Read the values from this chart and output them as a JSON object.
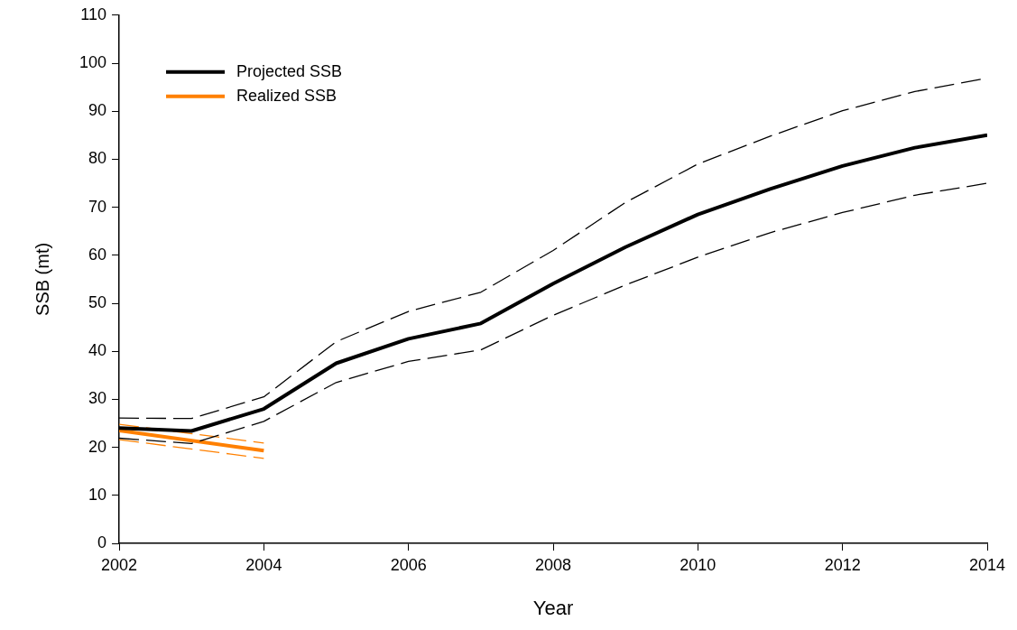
{
  "chart_data": {
    "type": "line",
    "xlabel": "Year",
    "ylabel": "SSB (mt)",
    "xlim": [
      2002,
      2014
    ],
    "xticks": [
      2002,
      2004,
      2006,
      2008,
      2010,
      2012,
      2014
    ],
    "ylim": [
      0,
      110
    ],
    "yticks": [
      0,
      10,
      20,
      30,
      40,
      50,
      60,
      70,
      80,
      90,
      100,
      110
    ],
    "grid": false,
    "legend": "top left",
    "marker": "none",
    "line_style": "solid",
    "series": [
      {
        "name": "Projected SSB",
        "color": "#000000",
        "x": [
          2002,
          2003,
          2004,
          2005,
          2006,
          2007,
          2008,
          2009,
          2010,
          2011,
          2012,
          2013,
          2014
        ],
        "values": [
          24.0,
          23.4,
          28.0,
          37.5,
          42.6,
          45.8,
          54.1,
          61.7,
          68.5,
          73.8,
          78.6,
          82.4,
          85.0
        ]
      },
      {
        "color": "#000000",
        "line_style": "dashed",
        "x": [
          2002,
          2003,
          2004,
          2005,
          2006,
          2007,
          2008,
          2009,
          2010,
          2011,
          2012,
          2013,
          2014
        ],
        "values": [
          21.9,
          20.8,
          25.4,
          33.5,
          37.9,
          40.3,
          47.5,
          53.8,
          59.6,
          64.7,
          68.9,
          72.5,
          75.0
        ]
      },
      {
        "color": "#000000",
        "line_style": "dashed",
        "x": [
          2002,
          2003,
          2004,
          2005,
          2006,
          2007,
          2008,
          2009,
          2010,
          2011,
          2012,
          2013,
          2014
        ],
        "values": [
          26.1,
          26.0,
          30.5,
          42.0,
          48.3,
          52.3,
          61.0,
          71.0,
          79.0,
          84.8,
          90.1,
          94.1,
          96.9
        ]
      },
      {
        "name": "Realized SSB",
        "color": "#ff8000",
        "x": [
          2002,
          2004
        ],
        "values": [
          23.5,
          19.3
        ]
      },
      {
        "color": "#ff8000",
        "line_style": "dashed",
        "x": [
          2002,
          2004
        ],
        "values": [
          21.6,
          17.7
        ]
      },
      {
        "color": "#ff8000",
        "line_style": "dashed",
        "x": [
          2002,
          2004
        ],
        "values": [
          24.8,
          20.9
        ]
      }
    ]
  }
}
